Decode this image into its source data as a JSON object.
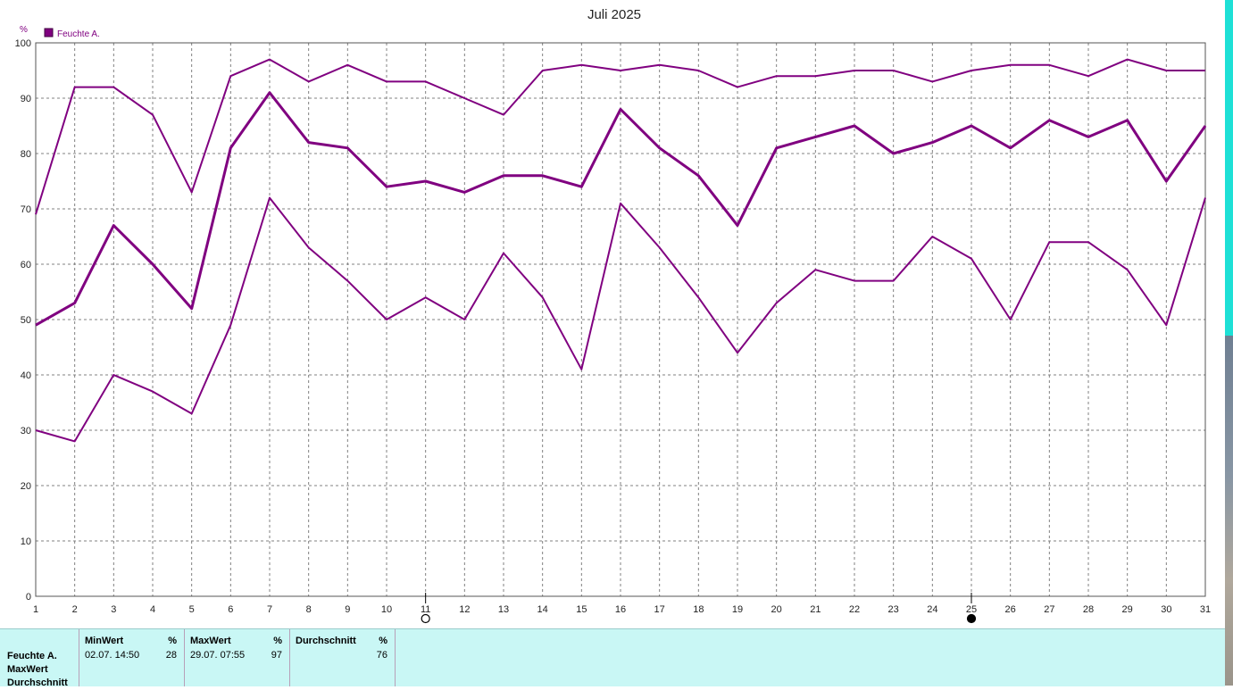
{
  "chart_data": {
    "type": "line",
    "title": "Juli 2025",
    "y_unit": "%",
    "ylim": [
      0,
      100
    ],
    "y_ticks": [
      0,
      10,
      20,
      30,
      40,
      50,
      60,
      70,
      80,
      90,
      100
    ],
    "x": [
      1,
      2,
      3,
      4,
      5,
      6,
      7,
      8,
      9,
      10,
      11,
      12,
      13,
      14,
      15,
      16,
      17,
      18,
      19,
      20,
      21,
      22,
      23,
      24,
      25,
      26,
      27,
      28,
      29,
      30,
      31
    ],
    "legend": {
      "label": "Feuchte A.",
      "color": "#800080",
      "placement": "top-left"
    },
    "grid": true,
    "series": [
      {
        "role": "max",
        "values": [
          69,
          92,
          92,
          87,
          73,
          94,
          97,
          93,
          96,
          93,
          93,
          90,
          87,
          95,
          96,
          95,
          96,
          95,
          92,
          94,
          94,
          95,
          95,
          93,
          95,
          96,
          96,
          94,
          97,
          95,
          95
        ]
      },
      {
        "role": "avg",
        "values": [
          49,
          53,
          67,
          60,
          52,
          81,
          91,
          82,
          81,
          74,
          75,
          73,
          76,
          76,
          74,
          88,
          81,
          76,
          67,
          81,
          83,
          85,
          80,
          82,
          85,
          81,
          86,
          83,
          86,
          75,
          85
        ]
      },
      {
        "role": "min",
        "values": [
          30,
          28,
          40,
          37,
          33,
          49,
          72,
          63,
          57,
          50,
          54,
          50,
          62,
          54,
          41,
          71,
          63,
          54,
          44,
          53,
          59,
          57,
          57,
          65,
          61,
          50,
          64,
          64,
          59,
          49,
          72
        ]
      }
    ],
    "markers": [
      {
        "day": 11,
        "symbol": "open-circle"
      },
      {
        "day": 25,
        "symbol": "filled-circle"
      }
    ]
  },
  "summary": {
    "row_labels": [
      "Feuchte A.",
      "MaxWert",
      "Durchschnitt"
    ],
    "min": {
      "header": "MinWert",
      "unit": "%",
      "date": "02.07.  14:50",
      "value": "28"
    },
    "max": {
      "header": "MaxWert",
      "unit": "%",
      "date": "29.07.  07:55",
      "value": "97"
    },
    "avg": {
      "header": "Durchschnitt",
      "unit": "%",
      "value": "76"
    }
  }
}
